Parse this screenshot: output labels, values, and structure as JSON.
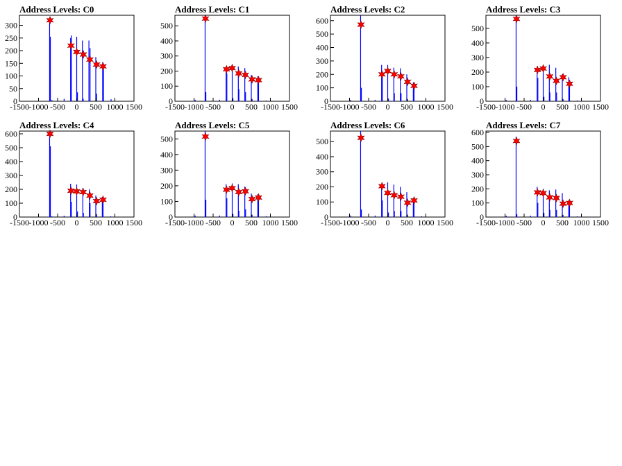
{
  "figure": {
    "background": "#ffffff"
  },
  "style": {
    "histogram_color": "#0000ff",
    "marker_color": "#ff0000",
    "marker_edge_color": "#8b0000"
  },
  "chart_data": [
    {
      "type": "bar",
      "title": "Address Levels: C0",
      "xlim": [
        -1500,
        1500
      ],
      "ylim": [
        0,
        340
      ],
      "xticks": [
        "-1500",
        "-1000",
        "-500",
        "0",
        "500",
        "1000",
        "1500"
      ],
      "yticks": [
        "0",
        "50",
        "100",
        "150",
        "200",
        "250",
        "300"
      ],
      "ytick_values": [
        0,
        50,
        100,
        150,
        200,
        250,
        300
      ],
      "bins": [
        [
          -710,
          330
        ],
        [
          -690,
          255
        ],
        [
          -650,
          5
        ],
        [
          -330,
          10
        ],
        [
          -160,
          250
        ],
        [
          -140,
          260
        ],
        [
          0,
          255
        ],
        [
          20,
          35
        ],
        [
          150,
          240
        ],
        [
          170,
          10
        ],
        [
          320,
          240
        ],
        [
          350,
          210
        ],
        [
          500,
          175
        ],
        [
          520,
          30
        ],
        [
          680,
          155
        ],
        [
          700,
          145
        ],
        [
          900,
          8
        ]
      ],
      "peaks": [
        [
          -700,
          320
        ],
        [
          -150,
          220
        ],
        [
          0,
          195
        ],
        [
          175,
          185
        ],
        [
          345,
          165
        ],
        [
          520,
          145
        ],
        [
          690,
          138
        ]
      ]
    },
    {
      "type": "bar",
      "title": "Address Levels: C1",
      "xlim": [
        -1500,
        1500
      ],
      "ylim": [
        0,
        570
      ],
      "xticks": [
        "-1500",
        "-1000",
        "-500",
        "0",
        "500",
        "1000",
        "1500"
      ],
      "yticks": [
        "0",
        "100",
        "200",
        "300",
        "400",
        "500"
      ],
      "ytick_values": [
        0,
        100,
        200,
        300,
        400,
        500
      ],
      "bins": [
        [
          -710,
          570
        ],
        [
          -690,
          60
        ],
        [
          -970,
          10
        ],
        [
          -330,
          10
        ],
        [
          -160,
          225
        ],
        [
          -140,
          185
        ],
        [
          0,
          240
        ],
        [
          20,
          20
        ],
        [
          160,
          230
        ],
        [
          175,
          80
        ],
        [
          330,
          220
        ],
        [
          350,
          60
        ],
        [
          500,
          175
        ],
        [
          520,
          15
        ],
        [
          670,
          165
        ],
        [
          690,
          140
        ],
        [
          890,
          5
        ]
      ],
      "peaks": [
        [
          -700,
          548
        ],
        [
          -150,
          212
        ],
        [
          0,
          220
        ],
        [
          170,
          185
        ],
        [
          345,
          175
        ],
        [
          520,
          145
        ],
        [
          690,
          140
        ]
      ]
    },
    {
      "type": "bar",
      "title": "Address Levels: C2",
      "xlim": [
        -1500,
        1500
      ],
      "ylim": [
        0,
        640
      ],
      "xticks": [
        "-1500",
        "-1000",
        "-500",
        "0",
        "500",
        "1000",
        "1500"
      ],
      "yticks": [
        "0",
        "100",
        "200",
        "300",
        "400",
        "500",
        "600"
      ],
      "ytick_values": [
        0,
        100,
        200,
        300,
        400,
        500,
        600
      ],
      "bins": [
        [
          -710,
          640
        ],
        [
          -690,
          100
        ],
        [
          -970,
          10
        ],
        [
          -330,
          10
        ],
        [
          -160,
          270
        ],
        [
          -140,
          200
        ],
        [
          0,
          270
        ],
        [
          20,
          20
        ],
        [
          160,
          250
        ],
        [
          175,
          60
        ],
        [
          330,
          245
        ],
        [
          350,
          60
        ],
        [
          500,
          200
        ],
        [
          520,
          15
        ],
        [
          670,
          140
        ],
        [
          690,
          120
        ],
        [
          890,
          5
        ]
      ],
      "peaks": [
        [
          -700,
          570
        ],
        [
          -150,
          200
        ],
        [
          0,
          225
        ],
        [
          170,
          200
        ],
        [
          345,
          185
        ],
        [
          520,
          145
        ],
        [
          690,
          115
        ]
      ]
    },
    {
      "type": "bar",
      "title": "Address Levels: C3",
      "xlim": [
        -1500,
        1500
      ],
      "ylim": [
        0,
        590
      ],
      "xticks": [
        "-1500",
        "-1000",
        "-500",
        "0",
        "500",
        "1000",
        "1500"
      ],
      "yticks": [
        "0",
        "100",
        "200",
        "300",
        "400",
        "500"
      ],
      "ytick_values": [
        0,
        100,
        200,
        300,
        400,
        500
      ],
      "bins": [
        [
          -710,
          590
        ],
        [
          -690,
          100
        ],
        [
          -970,
          10
        ],
        [
          -330,
          10
        ],
        [
          -160,
          240
        ],
        [
          -140,
          160
        ],
        [
          0,
          245
        ],
        [
          20,
          30
        ],
        [
          160,
          250
        ],
        [
          175,
          60
        ],
        [
          330,
          230
        ],
        [
          350,
          60
        ],
        [
          500,
          185
        ],
        [
          520,
          15
        ],
        [
          670,
          165
        ],
        [
          690,
          130
        ],
        [
          890,
          5
        ]
      ],
      "peaks": [
        [
          -700,
          565
        ],
        [
          -150,
          215
        ],
        [
          0,
          225
        ],
        [
          170,
          170
        ],
        [
          345,
          140
        ],
        [
          520,
          165
        ],
        [
          690,
          120
        ]
      ]
    },
    {
      "type": "bar",
      "title": "Address Levels: C4",
      "xlim": [
        -1500,
        1500
      ],
      "ylim": [
        0,
        620
      ],
      "xticks": [
        "-1500",
        "-1000",
        "-500",
        "0",
        "500",
        "1000",
        "1500"
      ],
      "yticks": [
        "0",
        "100",
        "200",
        "300",
        "400",
        "500",
        "600"
      ],
      "ytick_values": [
        0,
        100,
        200,
        300,
        400,
        500,
        600
      ],
      "bins": [
        [
          -710,
          620
        ],
        [
          -690,
          510
        ],
        [
          -650,
          5
        ],
        [
          -330,
          10
        ],
        [
          -160,
          240
        ],
        [
          -140,
          110
        ],
        [
          0,
          235
        ],
        [
          20,
          40
        ],
        [
          160,
          210
        ],
        [
          175,
          30
        ],
        [
          330,
          200
        ],
        [
          350,
          100
        ],
        [
          500,
          155
        ],
        [
          520,
          20
        ],
        [
          670,
          145
        ],
        [
          690,
          135
        ],
        [
          890,
          5
        ]
      ],
      "peaks": [
        [
          -700,
          600
        ],
        [
          -150,
          190
        ],
        [
          0,
          185
        ],
        [
          170,
          180
        ],
        [
          345,
          155
        ],
        [
          520,
          115
        ],
        [
          690,
          125
        ]
      ]
    },
    {
      "type": "bar",
      "title": "Address Levels: C5",
      "xlim": [
        -1500,
        1500
      ],
      "ylim": [
        0,
        550
      ],
      "xticks": [
        "-1500",
        "-1000",
        "-500",
        "0",
        "500",
        "1000",
        "1500"
      ],
      "yticks": [
        "0",
        "100",
        "200",
        "300",
        "400",
        "500"
      ],
      "ytick_values": [
        0,
        100,
        200,
        300,
        400,
        500
      ],
      "bins": [
        [
          -710,
          550
        ],
        [
          -690,
          110
        ],
        [
          -970,
          10
        ],
        [
          -330,
          10
        ],
        [
          -160,
          210
        ],
        [
          -140,
          120
        ],
        [
          0,
          215
        ],
        [
          20,
          20
        ],
        [
          160,
          210
        ],
        [
          175,
          40
        ],
        [
          330,
          195
        ],
        [
          350,
          50
        ],
        [
          500,
          150
        ],
        [
          520,
          15
        ],
        [
          670,
          145
        ],
        [
          690,
          125
        ],
        [
          890,
          5
        ]
      ],
      "peaks": [
        [
          -700,
          515
        ],
        [
          -150,
          175
        ],
        [
          0,
          185
        ],
        [
          170,
          160
        ],
        [
          345,
          165
        ],
        [
          520,
          115
        ],
        [
          690,
          125
        ]
      ]
    },
    {
      "type": "bar",
      "title": "Address Levels: C6",
      "xlim": [
        -1500,
        1500
      ],
      "ylim": [
        0,
        570
      ],
      "xticks": [
        "-1500",
        "-1000",
        "-500",
        "0",
        "500",
        "1000",
        "1500"
      ],
      "yticks": [
        "0",
        "100",
        "200",
        "300",
        "400",
        "500"
      ],
      "ytick_values": [
        0,
        100,
        200,
        300,
        400,
        500
      ],
      "bins": [
        [
          -710,
          570
        ],
        [
          -690,
          50
        ],
        [
          -970,
          10
        ],
        [
          -330,
          10
        ],
        [
          -160,
          200
        ],
        [
          -140,
          110
        ],
        [
          0,
          230
        ],
        [
          20,
          30
        ],
        [
          160,
          215
        ],
        [
          175,
          40
        ],
        [
          330,
          200
        ],
        [
          350,
          40
        ],
        [
          500,
          165
        ],
        [
          520,
          15
        ],
        [
          670,
          125
        ],
        [
          690,
          115
        ],
        [
          890,
          5
        ]
      ],
      "peaks": [
        [
          -700,
          525
        ],
        [
          -150,
          205
        ],
        [
          0,
          160
        ],
        [
          170,
          145
        ],
        [
          345,
          135
        ],
        [
          520,
          95
        ],
        [
          690,
          110
        ]
      ]
    },
    {
      "type": "bar",
      "title": "Address Levels: C7",
      "xlim": [
        -1500,
        1500
      ],
      "ylim": [
        0,
        610
      ],
      "xticks": [
        "-1500",
        "-1000",
        "-500",
        "0",
        "500",
        "1000",
        "1500"
      ],
      "yticks": [
        "0",
        "100",
        "200",
        "300",
        "400",
        "500",
        "600"
      ],
      "ytick_values": [
        0,
        100,
        200,
        300,
        400,
        500,
        600
      ],
      "bins": [
        [
          -710,
          570
        ],
        [
          -690,
          20
        ],
        [
          -970,
          10
        ],
        [
          -330,
          10
        ],
        [
          -160,
          215
        ],
        [
          -140,
          100
        ],
        [
          0,
          200
        ],
        [
          20,
          30
        ],
        [
          160,
          190
        ],
        [
          175,
          50
        ],
        [
          330,
          195
        ],
        [
          350,
          50
        ],
        [
          500,
          170
        ],
        [
          520,
          15
        ],
        [
          670,
          120
        ],
        [
          690,
          110
        ],
        [
          890,
          5
        ]
      ],
      "peaks": [
        [
          -700,
          540
        ],
        [
          -150,
          175
        ],
        [
          0,
          170
        ],
        [
          170,
          140
        ],
        [
          345,
          135
        ],
        [
          520,
          95
        ],
        [
          690,
          100
        ]
      ]
    }
  ]
}
